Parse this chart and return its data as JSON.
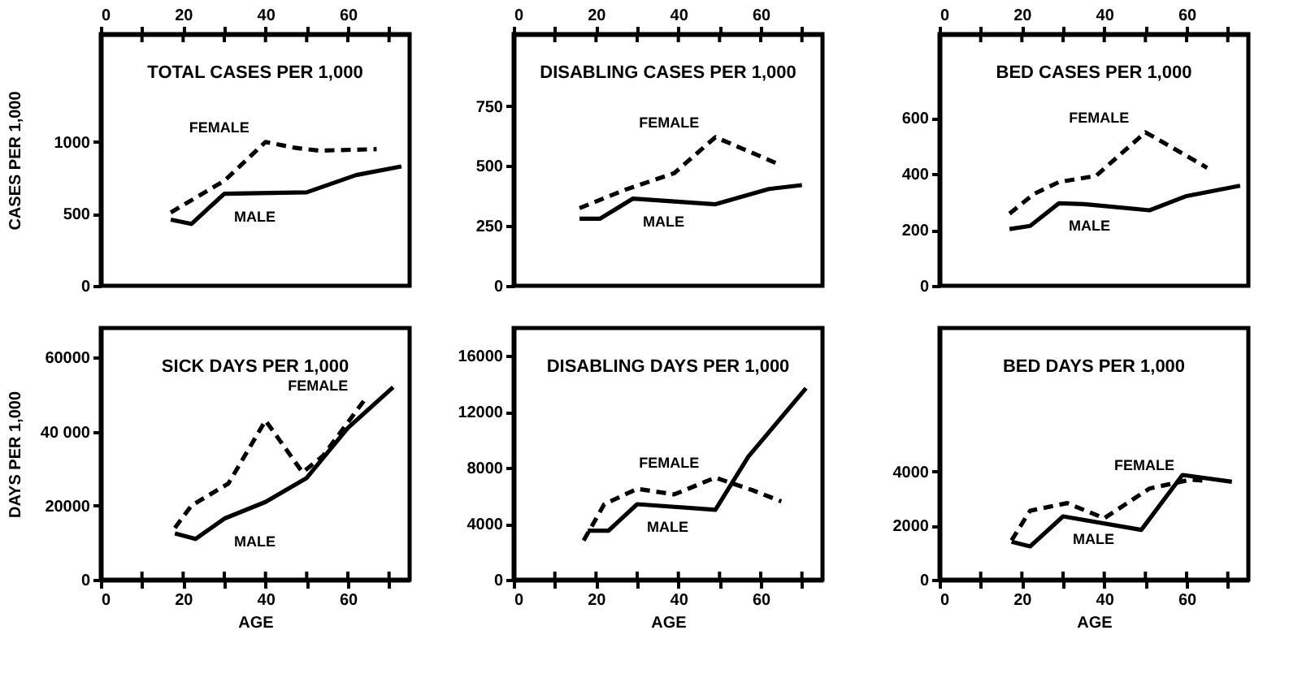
{
  "chart_data": [
    {
      "type": "line",
      "title": "TOTAL CASES PER 1,000",
      "ylabel": "CASES PER 1,000",
      "xlim": [
        0,
        75
      ],
      "xticks": [
        0,
        {
          "value": 10,
          "label": null
        },
        20,
        {
          "value": 30,
          "label": null
        },
        40,
        {
          "value": 50,
          "label": null
        },
        60,
        {
          "value": 70,
          "label": null
        }
      ],
      "ylim": [
        0,
        1750
      ],
      "yticks": [
        0,
        500,
        1000
      ],
      "grid": false,
      "series": [
        {
          "name": "FEMALE",
          "color": "#000000",
          "line_style": "dashed",
          "x": [
            17,
            30,
            40,
            47,
            53,
            67
          ],
          "values": [
            510,
            730,
            1000,
            960,
            940,
            950
          ]
        },
        {
          "name": "MALE",
          "color": "#000000",
          "line_style": "solid",
          "x": [
            17,
            22,
            30,
            50,
            62,
            73
          ],
          "values": [
            460,
            430,
            640,
            650,
            770,
            830
          ]
        }
      ]
    },
    {
      "type": "line",
      "title": "DISABLING CASES PER 1,000",
      "xlim": [
        0,
        75
      ],
      "xticks": [
        0,
        {
          "value": 10,
          "label": null
        },
        20,
        {
          "value": 30,
          "label": null
        },
        40,
        {
          "value": 50,
          "label": null
        },
        60,
        {
          "value": 70,
          "label": null
        }
      ],
      "ylim": [
        0,
        1050
      ],
      "yticks": [
        0,
        250,
        500,
        750
      ],
      "grid": false,
      "series": [
        {
          "name": "FEMALE",
          "color": "#000000",
          "line_style": "dashed",
          "x": [
            16,
            27,
            39,
            49,
            64
          ],
          "values": [
            324,
            400,
            470,
            620,
            510
          ]
        },
        {
          "name": "MALE",
          "color": "#000000",
          "line_style": "solid",
          "x": [
            16,
            21,
            29,
            49,
            62,
            70
          ],
          "values": [
            280,
            280,
            364,
            340,
            404,
            420
          ]
        }
      ]
    },
    {
      "type": "line",
      "title": "BED CASES PER 1,000",
      "xlim": [
        0,
        75
      ],
      "xticks": [
        0,
        {
          "value": 10,
          "label": null
        },
        20,
        {
          "value": 30,
          "label": null
        },
        40,
        {
          "value": 50,
          "label": null
        },
        60,
        {
          "value": 70,
          "label": null
        }
      ],
      "ylim": [
        0,
        900
      ],
      "yticks": [
        0,
        200,
        400,
        600
      ],
      "grid": false,
      "series": [
        {
          "name": "FEMALE",
          "color": "#000000",
          "line_style": "dashed",
          "x": [
            17,
            23,
            29,
            38,
            50,
            65
          ],
          "values": [
            258,
            329,
            371,
            393,
            549,
            422
          ]
        },
        {
          "name": "MALE",
          "color": "#000000",
          "line_style": "solid",
          "x": [
            17,
            22,
            29,
            35,
            51,
            60,
            73
          ],
          "values": [
            203,
            214,
            295,
            292,
            270,
            321,
            358
          ]
        }
      ]
    },
    {
      "type": "line",
      "title": "SICK DAYS PER 1,000",
      "ylabel": "DAYS PER 1,000",
      "xlabel": "AGE",
      "xlim": [
        0,
        75
      ],
      "xticks": [
        0,
        {
          "value": 10,
          "label": null
        },
        20,
        {
          "value": 30,
          "label": null
        },
        40,
        {
          "value": 50,
          "label": null
        },
        60,
        {
          "value": 70,
          "label": null
        }
      ],
      "ylim": [
        0,
        68000
      ],
      "yticks": [
        0,
        20000,
        {
          "value": 40000,
          "label": "40 000"
        },
        60000
      ],
      "grid": false,
      "series": [
        {
          "name": "FEMALE",
          "color": "#000000",
          "line_style": "dashed",
          "x": [
            18,
            22,
            31,
            40,
            49,
            54,
            64
          ],
          "values": [
            14000,
            20000,
            26000,
            43000,
            29000,
            33500,
            48500
          ]
        },
        {
          "name": "MALE",
          "color": "#000000",
          "line_style": "solid",
          "x": [
            18,
            23,
            30,
            40,
            50,
            60,
            71
          ],
          "values": [
            12500,
            11000,
            16500,
            21000,
            27500,
            41000,
            52000
          ]
        }
      ]
    },
    {
      "type": "line",
      "title": "DISABLING DAYS PER 1,000",
      "xlabel": "AGE",
      "xlim": [
        0,
        75
      ],
      "xticks": [
        0,
        {
          "value": 10,
          "label": null
        },
        20,
        {
          "value": 30,
          "label": null
        },
        40,
        {
          "value": 50,
          "label": null
        },
        60,
        {
          "value": 70,
          "label": null
        }
      ],
      "ylim": [
        0,
        18000
      ],
      "yticks": [
        0,
        4000,
        8000,
        12000,
        16000
      ],
      "grid": false,
      "series": [
        {
          "name": "FEMALE",
          "color": "#000000",
          "line_style": "dashed",
          "x": [
            17,
            22,
            30,
            39,
            49,
            58,
            65
          ],
          "values": [
            2800,
            5400,
            6500,
            6100,
            7300,
            6400,
            5600
          ]
        },
        {
          "name": "MALE",
          "color": "#000000",
          "line_style": "solid",
          "x": [
            18,
            23,
            30,
            49,
            57,
            71
          ],
          "values": [
            3500,
            3500,
            5400,
            5000,
            8800,
            13700
          ]
        }
      ]
    },
    {
      "type": "line",
      "title": "BED DAYS PER 1,000",
      "xlabel": "AGE",
      "xlim": [
        0,
        75
      ],
      "xticks": [
        0,
        {
          "value": 10,
          "label": null
        },
        20,
        {
          "value": 30,
          "label": null
        },
        40,
        {
          "value": 50,
          "label": null
        },
        60,
        {
          "value": 70,
          "label": null
        }
      ],
      "ylim": [
        0,
        9300
      ],
      "yticks": [
        0,
        2000,
        4000
      ],
      "grid": false,
      "series": [
        {
          "name": "FEMALE",
          "color": "#000000",
          "line_style": "dashed",
          "x": [
            17.5,
            22,
            31,
            40,
            51,
            61,
            65
          ],
          "values": [
            1450,
            2550,
            2830,
            2270,
            3370,
            3700,
            3650
          ]
        },
        {
          "name": "MALE",
          "color": "#000000",
          "line_style": "solid",
          "x": [
            17.5,
            22,
            30,
            49,
            59,
            71
          ],
          "values": [
            1400,
            1230,
            2340,
            1840,
            3870,
            3620
          ]
        }
      ]
    }
  ]
}
